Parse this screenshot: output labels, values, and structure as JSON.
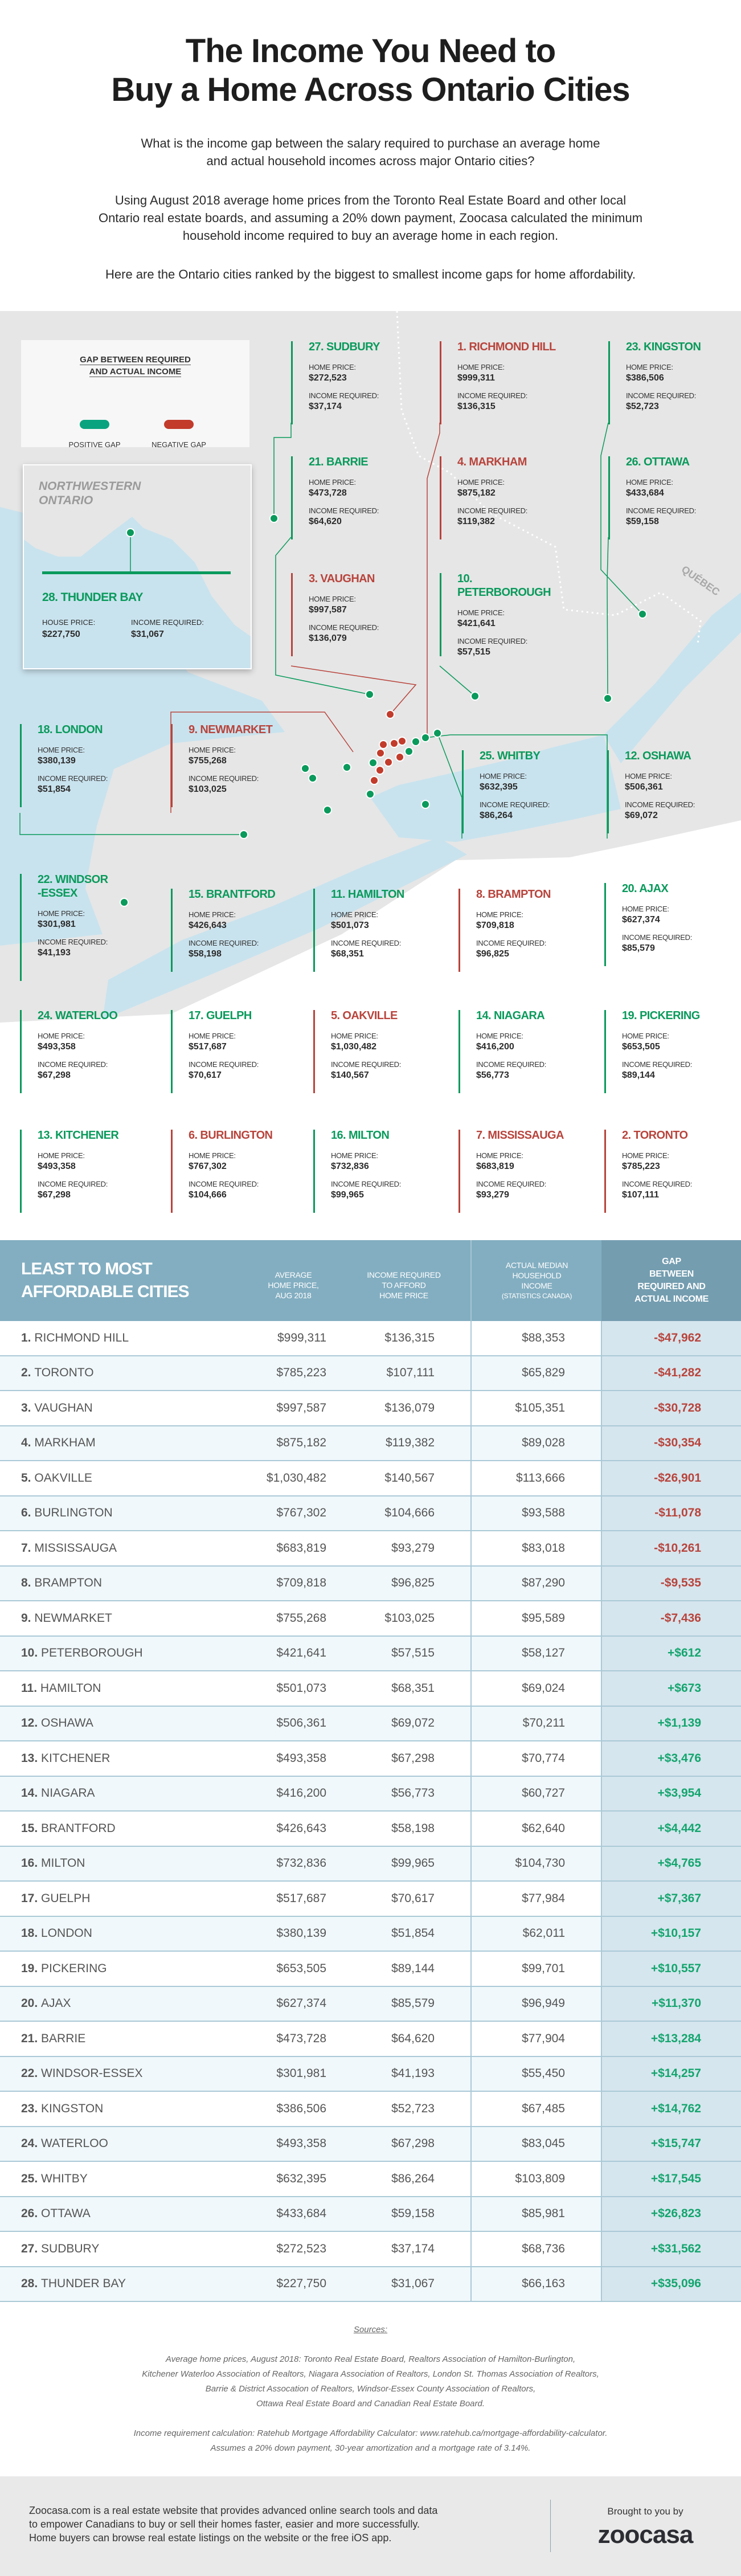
{
  "header": {
    "title_line1": "The Income You Need to",
    "title_line2": "Buy a Home Across Ontario Cities",
    "intro_1_line1": "What is the income gap between the salary required to purchase an average home",
    "intro_1_line2": "and actual household incomes across major Ontario cities?",
    "intro_2_line1": "Using August 2018 average home prices from the Toronto Real Estate Board and other local",
    "intro_2_line2": "Ontario real estate boards, and assuming a 20% down payment, Zoocasa calculated the minimum",
    "intro_2_line3": "household income required to buy an average home in each region.",
    "intro_3": "Here are the Ontario cities ranked by the biggest to smallest income gaps for home affordability."
  },
  "colors": {
    "positive": "#0a9a5c",
    "negative": "#b8443c",
    "positive_pill": "#0aa37f",
    "negative_pill": "#c23b2b",
    "table_header": "#83aec1",
    "gap_header": "#749db0"
  },
  "legend": {
    "title_line1": "GAP BETWEEN REQUIRED",
    "title_line2": "AND ACTUAL INCOME",
    "positive": "POSITIVE GAP",
    "negative": "NEGATIVE GAP"
  },
  "map": {
    "region_line1": "NORTHWESTERN",
    "region_line2": "ONTARIO",
    "quebec": "QUÉBEC",
    "home_price_label": "HOME PRICE:",
    "income_label": "INCOME REQUIRED:",
    "thunder_bay": {
      "title": "28. THUNDER BAY",
      "price_label": "HOUSE PRICE:",
      "price": "$227,750",
      "income_label": "INCOME REQUIRED:",
      "income": "$31,067",
      "gap": "positive"
    },
    "cities": [
      {
        "title": "27. SUDBURY",
        "home_price": "$272,523",
        "income_required": "$37,174",
        "gap": "positive"
      },
      {
        "title": "1. RICHMOND HILL",
        "home_price": "$999,311",
        "income_required": "$136,315",
        "gap": "negative"
      },
      {
        "title": "23. KINGSTON",
        "home_price": "$386,506",
        "income_required": "$52,723",
        "gap": "positive"
      },
      {
        "title": "21. BARRIE",
        "home_price": "$473,728",
        "income_required": "$64,620",
        "gap": "positive"
      },
      {
        "title": "4. MARKHAM",
        "home_price": "$875,182",
        "income_required": "$119,382",
        "gap": "negative"
      },
      {
        "title": "26. OTTAWA",
        "home_price": "$433,684",
        "income_required": "$59,158",
        "gap": "positive"
      },
      {
        "title": "3. VAUGHAN",
        "home_price": "$997,587",
        "income_required": "$136,079",
        "gap": "negative"
      },
      {
        "title": "10. PETERBOROUGH",
        "home_price": "$421,641",
        "income_required": "$57,515",
        "gap": "positive"
      },
      {
        "title": "18. LONDON",
        "home_price": "$380,139",
        "income_required": "$51,854",
        "gap": "positive"
      },
      {
        "title": "9. NEWMARKET",
        "home_price": "$755,268",
        "income_required": "$103,025",
        "gap": "negative"
      },
      {
        "title": "25. WHITBY",
        "home_price": "$632,395",
        "income_required": "$86,264",
        "gap": "positive"
      },
      {
        "title": "12. OSHAWA",
        "home_price": "$506,361",
        "income_required": "$69,072",
        "gap": "positive"
      },
      {
        "title": "22. WINDSOR\n-ESSEX",
        "home_price": "$301,981",
        "income_required": "$41,193",
        "gap": "positive"
      },
      {
        "title": "15. BRANTFORD",
        "home_price": "$426,643",
        "income_required": "$58,198",
        "gap": "positive"
      },
      {
        "title": "11. HAMILTON",
        "home_price": "$501,073",
        "income_required": "$68,351",
        "gap": "positive"
      },
      {
        "title": "8. BRAMPTON",
        "home_price": "$709,818",
        "income_required": "$96,825",
        "gap": "negative"
      },
      {
        "title": "20. AJAX",
        "home_price": "$627,374",
        "income_required": "$85,579",
        "gap": "positive"
      },
      {
        "title": "24. WATERLOO",
        "home_price": "$493,358",
        "income_required": "$67,298",
        "gap": "positive"
      },
      {
        "title": "17. GUELPH",
        "home_price": "$517,687",
        "income_required": "$70,617",
        "gap": "positive"
      },
      {
        "title": "5. OAKVILLE",
        "home_price": "$1,030,482",
        "income_required": "$140,567",
        "gap": "negative"
      },
      {
        "title": "14. NIAGARA",
        "home_price": "$416,200",
        "income_required": "$56,773",
        "gap": "positive"
      },
      {
        "title": "19. PICKERING",
        "home_price": "$653,505",
        "income_required": "$89,144",
        "gap": "positive"
      },
      {
        "title": "13. KITCHENER",
        "home_price": "$493,358",
        "income_required": "$67,298",
        "gap": "positive"
      },
      {
        "title": "6. BURLINGTON",
        "home_price": "$767,302",
        "income_required": "$104,666",
        "gap": "negative"
      },
      {
        "title": "16. MILTON",
        "home_price": "$732,836",
        "income_required": "$99,965",
        "gap": "positive"
      },
      {
        "title": "7. MISSISSAUGA",
        "home_price": "$683,819",
        "income_required": "$93,279",
        "gap": "negative"
      },
      {
        "title": "2. TORONTO",
        "home_price": "$785,223",
        "income_required": "$107,111",
        "gap": "negative"
      }
    ]
  },
  "chart_data": {
    "type": "table",
    "title": "LEAST TO MOST AFFORDABLE CITIES",
    "columns": [
      "LEAST TO MOST AFFORDABLE CITIES",
      "AVERAGE HOME PRICE, AUG 2018",
      "INCOME REQUIRED TO AFFORD HOME PRICE",
      "ACTUAL MEDIAN HOUSEHOLD INCOME (STATISTICS CANADA)",
      "GAP BETWEEN REQUIRED AND ACTUAL INCOME"
    ],
    "header_lines": {
      "title": [
        "LEAST TO MOST",
        "AFFORDABLE CITIES"
      ],
      "avg": [
        "AVERAGE",
        "HOME PRICE,",
        "AUG 2018"
      ],
      "req": [
        "INCOME REQUIRED",
        "TO AFFORD",
        "HOME PRICE"
      ],
      "median": [
        "ACTUAL MEDIAN",
        "HOUSEHOLD",
        "INCOME",
        "(STATISTICS CANADA)"
      ],
      "gap": [
        "GAP",
        "BETWEEN",
        "REQUIRED AND",
        "ACTUAL INCOME"
      ]
    },
    "rows": [
      {
        "rank": "1.",
        "city": "RICHMOND HILL",
        "avg_price": "$999,311",
        "income_required": "$136,315",
        "median_income": "$88,353",
        "gap": "-$47,962"
      },
      {
        "rank": "2.",
        "city": "TORONTO",
        "avg_price": "$785,223",
        "income_required": "$107,111",
        "median_income": "$65,829",
        "gap": "-$41,282"
      },
      {
        "rank": "3.",
        "city": "VAUGHAN",
        "avg_price": "$997,587",
        "income_required": "$136,079",
        "median_income": "$105,351",
        "gap": "-$30,728"
      },
      {
        "rank": "4.",
        "city": "MARKHAM",
        "avg_price": "$875,182",
        "income_required": "$119,382",
        "median_income": "$89,028",
        "gap": "-$30,354"
      },
      {
        "rank": "5.",
        "city": "OAKVILLE",
        "avg_price": "$1,030,482",
        "income_required": "$140,567",
        "median_income": "$113,666",
        "gap": "-$26,901"
      },
      {
        "rank": "6.",
        "city": "BURLINGTON",
        "avg_price": "$767,302",
        "income_required": "$104,666",
        "median_income": "$93,588",
        "gap": "-$11,078"
      },
      {
        "rank": "7.",
        "city": "MISSISSAUGA",
        "avg_price": "$683,819",
        "income_required": "$93,279",
        "median_income": "$83,018",
        "gap": "-$10,261"
      },
      {
        "rank": "8.",
        "city": "BRAMPTON",
        "avg_price": "$709,818",
        "income_required": "$96,825",
        "median_income": "$87,290",
        "gap": "-$9,535"
      },
      {
        "rank": "9.",
        "city": "NEWMARKET",
        "avg_price": "$755,268",
        "income_required": "$103,025",
        "median_income": "$95,589",
        "gap": "-$7,436"
      },
      {
        "rank": "10.",
        "city": "PETERBOROUGH",
        "avg_price": "$421,641",
        "income_required": "$57,515",
        "median_income": "$58,127",
        "gap": "+$612"
      },
      {
        "rank": "11.",
        "city": "HAMILTON",
        "avg_price": "$501,073",
        "income_required": "$68,351",
        "median_income": "$69,024",
        "gap": "+$673"
      },
      {
        "rank": "12.",
        "city": "OSHAWA",
        "avg_price": "$506,361",
        "income_required": "$69,072",
        "median_income": "$70,211",
        "gap": "+$1,139"
      },
      {
        "rank": "13.",
        "city": "KITCHENER",
        "avg_price": "$493,358",
        "income_required": "$67,298",
        "median_income": "$70,774",
        "gap": "+$3,476"
      },
      {
        "rank": "14.",
        "city": "NIAGARA",
        "avg_price": "$416,200",
        "income_required": "$56,773",
        "median_income": "$60,727",
        "gap": "+$3,954"
      },
      {
        "rank": "15.",
        "city": "BRANTFORD",
        "avg_price": "$426,643",
        "income_required": "$58,198",
        "median_income": "$62,640",
        "gap": "+$4,442"
      },
      {
        "rank": "16.",
        "city": "MILTON",
        "avg_price": "$732,836",
        "income_required": "$99,965",
        "median_income": "$104,730",
        "gap": "+$4,765"
      },
      {
        "rank": "17.",
        "city": "GUELPH",
        "avg_price": "$517,687",
        "income_required": "$70,617",
        "median_income": "$77,984",
        "gap": "+$7,367"
      },
      {
        "rank": "18.",
        "city": "LONDON",
        "avg_price": "$380,139",
        "income_required": "$51,854",
        "median_income": "$62,011",
        "gap": "+$10,157"
      },
      {
        "rank": "19.",
        "city": "PICKERING",
        "avg_price": "$653,505",
        "income_required": "$89,144",
        "median_income": "$99,701",
        "gap": "+$10,557"
      },
      {
        "rank": "20.",
        "city": "AJAX",
        "avg_price": "$627,374",
        "income_required": "$85,579",
        "median_income": "$96,949",
        "gap": "+$11,370"
      },
      {
        "rank": "21.",
        "city": "BARRIE",
        "avg_price": "$473,728",
        "income_required": "$64,620",
        "median_income": "$77,904",
        "gap": "+$13,284"
      },
      {
        "rank": "22.",
        "city": "WINDSOR-ESSEX",
        "avg_price": "$301,981",
        "income_required": "$41,193",
        "median_income": "$55,450",
        "gap": "+$14,257"
      },
      {
        "rank": "23.",
        "city": "KINGSTON",
        "avg_price": "$386,506",
        "income_required": "$52,723",
        "median_income": "$67,485",
        "gap": "+$14,762"
      },
      {
        "rank": "24.",
        "city": "WATERLOO",
        "avg_price": "$493,358",
        "income_required": "$67,298",
        "median_income": "$83,045",
        "gap": "+$15,747"
      },
      {
        "rank": "25.",
        "city": "WHITBY",
        "avg_price": "$632,395",
        "income_required": "$86,264",
        "median_income": "$103,809",
        "gap": "+$17,545"
      },
      {
        "rank": "26.",
        "city": "OTTAWA",
        "avg_price": "$433,684",
        "income_required": "$59,158",
        "median_income": "$85,981",
        "gap": "+$26,823"
      },
      {
        "rank": "27.",
        "city": "SUDBURY",
        "avg_price": "$272,523",
        "income_required": "$37,174",
        "median_income": "$68,736",
        "gap": "+$31,562"
      },
      {
        "rank": "28.",
        "city": "THUNDER BAY",
        "avg_price": "$227,750",
        "income_required": "$31,067",
        "median_income": "$66,163",
        "gap": "+$35,096"
      }
    ]
  },
  "sources": {
    "heading": "Sources:",
    "line1": "Average home prices, August 2018: Toronto Real Estate Board, Realtors Association of Hamilton-Burlington,",
    "line2": "Kitchener Waterloo Association of Realtors, Niagara Association of Realtors, London St. Thomas Association of Realtors,",
    "line3": "Barrie & District Assocation of Realtors, Windsor-Essex County Association of Realtors,",
    "line4": "Ottawa Real Estate Board and Canadian Real Estate Board.",
    "line5": "Income requirement calculation: Ratehub Mortgage Affordability Calculator: www.ratehub.ca/mortgage-affordability-calculator.",
    "line6": "Assumes a 20% down payment, 30-year amortization and a mortgage rate of 3.14%."
  },
  "footer": {
    "line1": "Zoocasa.com is a real estate website that provides advanced online search tools and data",
    "line2": "to empower Canadians to buy or sell their homes faster, easier and more successfully.",
    "line3": "Home buyers can browse real estate listings on the website or the free iOS app.",
    "brought_by": "Brought to you by",
    "logo": "zoocasa"
  }
}
